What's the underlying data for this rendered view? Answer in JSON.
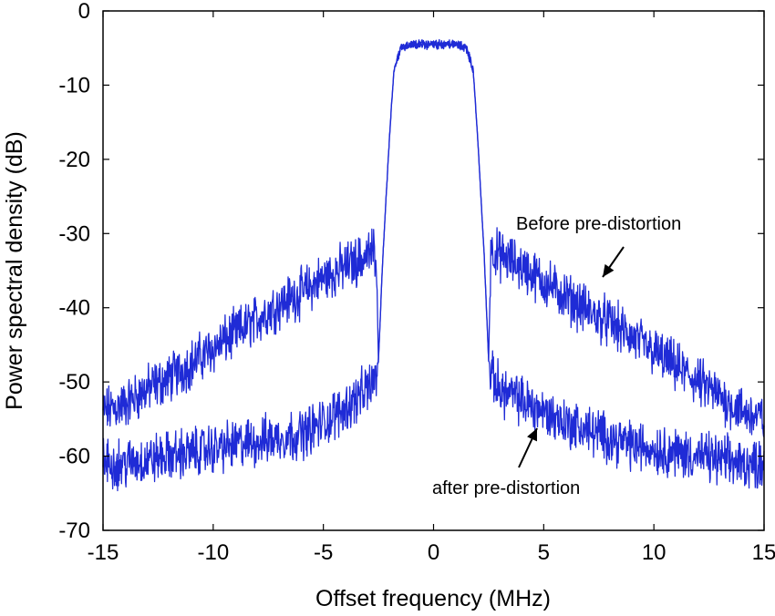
{
  "chart_data": {
    "type": "line",
    "title": "",
    "xlabel": "Offset frequency (MHz)",
    "ylabel": "Power spectral density (dB)",
    "xlim": [
      -15,
      15
    ],
    "ylim": [
      -70,
      0
    ],
    "xticks": [
      -15,
      -10,
      -5,
      0,
      5,
      10,
      15
    ],
    "yticks": [
      0,
      -10,
      -20,
      -30,
      -40,
      -50,
      -60,
      -70
    ],
    "grid": false,
    "legend": "none",
    "line_color": "#1f2bd6",
    "series": [
      {
        "x": [
          -15,
          -14,
          -13,
          -12,
          -11,
          -10,
          -9,
          -8,
          -7,
          -6,
          -5,
          -4,
          -3,
          -2.6,
          -2.55,
          -2.5,
          -2.3,
          -2,
          -1.8,
          -1.5,
          -1,
          0,
          1,
          1.5,
          1.8,
          2,
          2.3,
          2.5,
          2.55,
          2.6,
          3,
          4,
          5,
          6,
          7,
          8,
          9,
          10,
          11,
          12,
          13,
          14,
          15
        ],
        "y": [
          -54,
          -53,
          -51,
          -49.5,
          -47.5,
          -45.5,
          -43.5,
          -41.5,
          -39.5,
          -38,
          -36,
          -34.5,
          -33,
          -32,
          -40,
          -47,
          -33,
          -17,
          -8,
          -5,
          -4.5,
          -4.5,
          -4.5,
          -5,
          -8,
          -17,
          -33,
          -47,
          -40,
          -32,
          -33,
          -34.5,
          -36.5,
          -38.5,
          -40.5,
          -42,
          -44,
          -46,
          -48,
          -50,
          -52,
          -54,
          -55
        ]
      },
      {
        "x": [
          -15,
          -14,
          -13,
          -12,
          -11,
          -10,
          -9,
          -8,
          -7,
          -6,
          -5,
          -4,
          -3,
          -2.6,
          -2.5,
          -2.3,
          -2,
          -1.8,
          -1.5,
          -1,
          0,
          1,
          1.5,
          1.8,
          2,
          2.3,
          2.5,
          2.6,
          3,
          4,
          5,
          6,
          7,
          8,
          9,
          10,
          11,
          12,
          13,
          14,
          15
        ],
        "y": [
          -61,
          -61,
          -60.5,
          -60,
          -59.5,
          -59,
          -58.5,
          -58,
          -57.5,
          -57,
          -55.5,
          -53.5,
          -51,
          -49,
          -47,
          -33,
          -17,
          -8,
          -5,
          -4.5,
          -4.5,
          -4.5,
          -5,
          -8,
          -17,
          -33,
          -47,
          -49,
          -51,
          -52.5,
          -54,
          -55.5,
          -56.5,
          -57.5,
          -58.5,
          -59,
          -59.5,
          -60,
          -60.5,
          -61,
          -61
        ]
      }
    ],
    "annotations": [
      {
        "text": "Before pre-distortion",
        "x": 7.7,
        "y": -34.5,
        "arrow_to_x": 7.7,
        "arrow_to_y": -38.5
      },
      {
        "text": "after pre-distortion",
        "x": 4.3,
        "y": -57,
        "arrow_to_x": 4.7,
        "arrow_to_y": -53.5
      }
    ]
  }
}
